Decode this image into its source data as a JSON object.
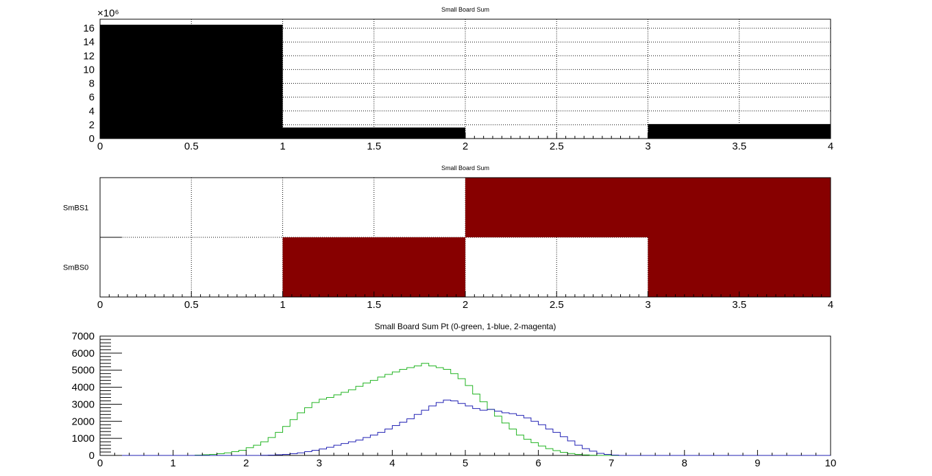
{
  "chart_data": [
    {
      "type": "bar",
      "title": "Small Board Sum",
      "xlabel": "",
      "ylabel": "",
      "xlim": [
        0,
        4
      ],
      "ylim": [
        0,
        17.3
      ],
      "y_multiplier_label": "×10⁶",
      "x_ticks": [
        "0",
        "0.5",
        "1",
        "1.5",
        "2",
        "2.5",
        "3",
        "3.5",
        "4"
      ],
      "y_ticks": [
        "0",
        "2",
        "4",
        "6",
        "8",
        "10",
        "12",
        "14",
        "16"
      ],
      "grid": true,
      "bins": [
        [
          0,
          1
        ],
        [
          1,
          2
        ],
        [
          2,
          3
        ],
        [
          3,
          4
        ]
      ],
      "values": [
        16.5,
        1.6,
        0,
        2.1
      ],
      "color": "#000000"
    },
    {
      "type": "heatmap",
      "title": "Small Board Sum",
      "xlim": [
        0,
        4
      ],
      "x_ticks": [
        "0",
        "0.5",
        "1",
        "1.5",
        "2",
        "2.5",
        "3",
        "3.5",
        "4"
      ],
      "y_categories": [
        "SmBS0",
        "SmBS1"
      ],
      "grid": true,
      "x_bins": [
        [
          0,
          1
        ],
        [
          1,
          2
        ],
        [
          2,
          3
        ],
        [
          3,
          4
        ]
      ],
      "cells": [
        [
          0,
          1,
          0,
          1
        ],
        [
          0,
          0,
          1,
          1
        ]
      ],
      "color": "#870000"
    },
    {
      "type": "line",
      "title": "Small Board Sum Pt (0-green, 1-blue, 2-magenta)",
      "xlim": [
        0,
        10
      ],
      "ylim": [
        0,
        7000
      ],
      "x_ticks": [
        "0",
        "1",
        "2",
        "3",
        "4",
        "5",
        "6",
        "7",
        "8",
        "9",
        "10"
      ],
      "y_ticks": [
        "0",
        "1000",
        "2000",
        "3000",
        "4000",
        "5000",
        "6000",
        "7000"
      ],
      "bin_width": 0.1,
      "series": [
        {
          "color": "#1fb31f",
          "values": [
            0,
            0,
            0,
            0,
            0,
            0,
            0,
            0,
            0,
            0,
            0,
            0,
            0,
            20,
            40,
            60,
            100,
            150,
            220,
            300,
            450,
            600,
            800,
            1050,
            1350,
            1700,
            2100,
            2500,
            2800,
            3100,
            3300,
            3400,
            3550,
            3700,
            3850,
            4050,
            4250,
            4400,
            4600,
            4750,
            4900,
            5050,
            5150,
            5250,
            5400,
            5250,
            5150,
            5050,
            4800,
            4500,
            4100,
            3600,
            3150,
            2700,
            2300,
            1900,
            1550,
            1200,
            950,
            750,
            550,
            400,
            280,
            180,
            110,
            60,
            30,
            10,
            0,
            0,
            0,
            0,
            0,
            0,
            0,
            0,
            0,
            0,
            0,
            0,
            0,
            0,
            0,
            0,
            0,
            0,
            0,
            0,
            0,
            0,
            0,
            0,
            0,
            0,
            0,
            0,
            0,
            0,
            0,
            0
          ]
        },
        {
          "color": "#1f1fb3",
          "values": [
            0,
            0,
            0,
            0,
            0,
            0,
            0,
            0,
            0,
            0,
            0,
            0,
            0,
            0,
            0,
            0,
            0,
            0,
            0,
            0,
            0,
            0,
            10,
            20,
            40,
            60,
            100,
            150,
            220,
            300,
            380,
            480,
            600,
            700,
            800,
            900,
            1050,
            1200,
            1350,
            1550,
            1750,
            1950,
            2150,
            2400,
            2650,
            2900,
            3100,
            3250,
            3200,
            3050,
            2900,
            2750,
            2650,
            2700,
            2600,
            2500,
            2450,
            2350,
            2200,
            2000,
            1800,
            1550,
            1350,
            1100,
            850,
            600,
            400,
            250,
            120,
            60,
            20,
            0,
            0,
            0,
            0,
            0,
            0,
            0,
            0,
            0,
            0,
            0,
            0,
            0,
            0,
            0,
            0,
            0,
            0,
            0,
            0,
            0,
            0,
            0,
            0,
            0,
            0,
            0,
            0,
            0
          ]
        }
      ]
    }
  ]
}
